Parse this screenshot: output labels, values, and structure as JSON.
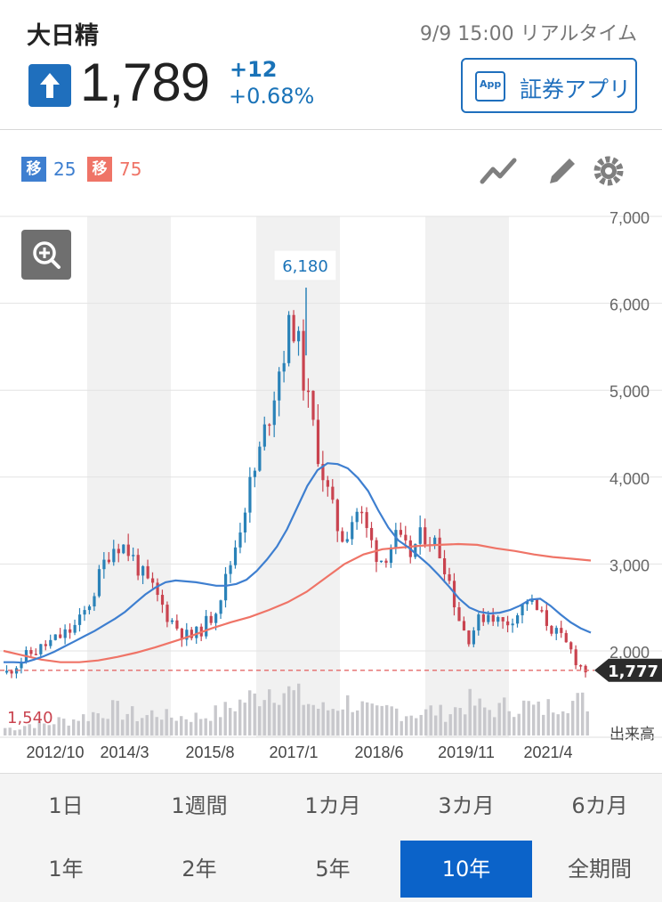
{
  "header": {
    "name": "大日精",
    "timestamp": "9/9 15:00 リアルタイム",
    "price": "1,789",
    "change": "+12",
    "change_pct": "+0.68%",
    "app_label": "証券アプリ",
    "app_icon_text": "App",
    "direction_icon": "up-arrow-icon"
  },
  "legend": [
    {
      "badge": "移",
      "value": "25",
      "color": "#3e7fd0"
    },
    {
      "badge": "移",
      "value": "75",
      "color": "#ef7467"
    }
  ],
  "toolbar": {
    "icons": [
      "line-chart-icon",
      "pencil-icon",
      "gear-icon"
    ]
  },
  "tabs": [
    {
      "label": "1日",
      "active": false
    },
    {
      "label": "1週間",
      "active": false
    },
    {
      "label": "1カ月",
      "active": false
    },
    {
      "label": "3カ月",
      "active": false
    },
    {
      "label": "6カ月",
      "active": false
    },
    {
      "label": "1年",
      "active": false
    },
    {
      "label": "2年",
      "active": false
    },
    {
      "label": "5年",
      "active": false
    },
    {
      "label": "10年",
      "active": true
    },
    {
      "label": "全期間",
      "active": false
    }
  ],
  "chart_data": {
    "type": "candlestick",
    "period": "10年",
    "ylim": [
      1400,
      7000
    ],
    "y_ticks": [
      {
        "value": 2000,
        "label": "2,000"
      },
      {
        "value": 3000,
        "label": "3,000"
      },
      {
        "value": 4000,
        "label": "4,000"
      },
      {
        "value": 5000,
        "label": "5,000"
      },
      {
        "value": 6000,
        "label": "6,000"
      },
      {
        "value": 7000,
        "label": "7,000"
      }
    ],
    "x_ticks": [
      "2012/10",
      "2014/3",
      "2015/8",
      "2017/1",
      "2018/6",
      "2019/11",
      "2021/4"
    ],
    "volume_label": "出来高",
    "high_label": "6,180",
    "high_value": 6180,
    "low_label": "1,540",
    "low_value": 1540,
    "last_label": "1,777",
    "last_value": 1777,
    "up_color": "#2a82b8",
    "down_color": "#c9434f",
    "ma25_color": "#3e7fd0",
    "ma75_color": "#ef7467",
    "price_path": [
      1750,
      1820,
      1900,
      1960,
      2000,
      2050,
      2100,
      2150,
      2200,
      2250,
      2350,
      2500,
      2700,
      2950,
      3150,
      3250,
      3200,
      3100,
      2950,
      2800,
      2700,
      2550,
      2400,
      2300,
      2200,
      2150,
      2200,
      2300,
      2400,
      2600,
      2850,
      3150,
      3500,
      3850,
      4100,
      4450,
      4800,
      5200,
      5500,
      5850,
      5400,
      4900,
      4500,
      4100,
      3750,
      3450,
      3300,
      3500,
      3650,
      3400,
      3200,
      3050,
      3150,
      3300,
      3200,
      3100,
      3250,
      3350,
      3300,
      3150,
      2950,
      2600,
      2300,
      2150,
      2300,
      2400,
      2450,
      2350,
      2300,
      2400,
      2450,
      2600,
      2500,
      2400,
      2300,
      2200,
      2100,
      2000,
      1850,
      1777
    ],
    "volume_path": [
      2,
      2,
      2,
      3,
      3,
      3,
      3,
      4,
      4,
      4,
      5,
      5,
      6,
      6,
      7,
      7,
      6,
      6,
      5,
      5,
      6,
      6,
      5,
      5,
      5,
      5,
      5,
      5,
      6,
      6,
      7,
      8,
      9,
      10,
      10,
      12,
      13,
      13,
      12,
      11,
      10,
      9,
      8,
      7,
      7,
      8,
      9,
      9,
      8,
      7,
      6,
      6,
      7,
      7,
      6,
      6,
      6,
      6,
      7,
      6,
      6,
      7,
      8,
      9,
      8,
      7,
      7,
      7,
      8,
      8,
      8,
      8,
      7,
      7,
      8,
      9,
      10,
      9,
      9,
      9
    ],
    "ma25": [
      1870,
      1870,
      1865,
      1900,
      1940,
      1990,
      2050,
      2110,
      2170,
      2230,
      2300,
      2370,
      2450,
      2550,
      2650,
      2730,
      2790,
      2810,
      2800,
      2790,
      2770,
      2750,
      2750,
      2770,
      2820,
      2920,
      3050,
      3200,
      3400,
      3650,
      3900,
      4080,
      4160,
      4150,
      4100,
      3990,
      3840,
      3620,
      3420,
      3270,
      3190,
      3090,
      2990,
      2870,
      2740,
      2600,
      2500,
      2450,
      2430,
      2440,
      2470,
      2520,
      2590,
      2600,
      2520,
      2420,
      2330,
      2260,
      2210
    ],
    "ma75": [
      2000,
      1950,
      1900,
      1870,
      1870,
      1890,
      1930,
      1980,
      2040,
      2110,
      2180,
      2260,
      2330,
      2390,
      2470,
      2560,
      2680,
      2840,
      3000,
      3110,
      3170,
      3190,
      3210,
      3220,
      3230,
      3220,
      3180,
      3150,
      3110,
      3080,
      3060,
      3040
    ]
  }
}
